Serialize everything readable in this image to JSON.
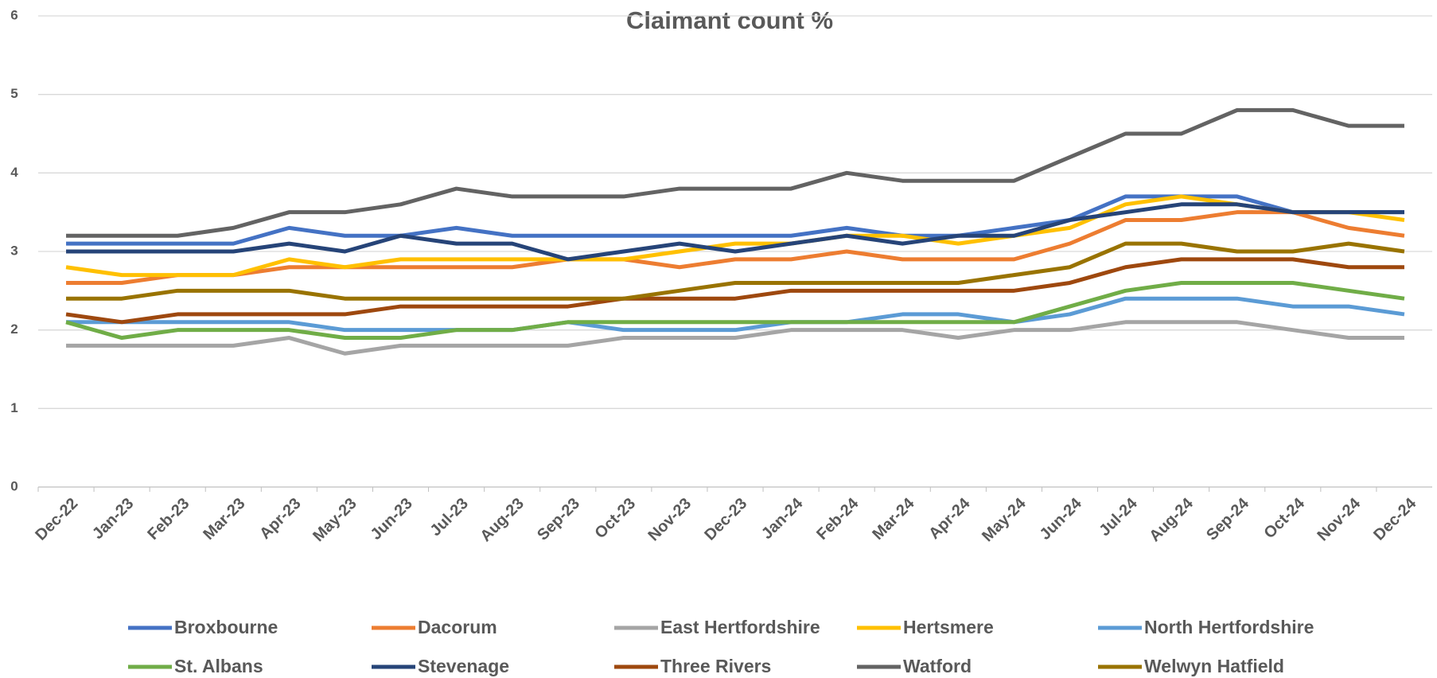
{
  "chart_data": {
    "type": "line",
    "title": "Claimant count %",
    "categories": [
      "Dec-22",
      "Jan-23",
      "Feb-23",
      "Mar-23",
      "Apr-23",
      "May-23",
      "Jun-23",
      "Jul-23",
      "Aug-23",
      "Sep-23",
      "Oct-23",
      "Nov-23",
      "Dec-23",
      "Jan-24",
      "Feb-24",
      "Mar-24",
      "Apr-24",
      "May-24",
      "Jun-24",
      "Jul-24",
      "Aug-24",
      "Sep-24",
      "Oct-24",
      "Nov-24",
      "Dec-24"
    ],
    "series": [
      {
        "name": "Broxbourne",
        "color": "#4472c4",
        "values": [
          3.1,
          3.1,
          3.1,
          3.1,
          3.3,
          3.2,
          3.2,
          3.3,
          3.2,
          3.2,
          3.2,
          3.2,
          3.2,
          3.2,
          3.3,
          3.2,
          3.2,
          3.3,
          3.4,
          3.7,
          3.7,
          3.7,
          3.5,
          3.5,
          3.5
        ]
      },
      {
        "name": "Dacorum",
        "color": "#ed7d31",
        "values": [
          2.6,
          2.6,
          2.7,
          2.7,
          2.8,
          2.8,
          2.8,
          2.8,
          2.8,
          2.9,
          2.9,
          2.8,
          2.9,
          2.9,
          3.0,
          2.9,
          2.9,
          2.9,
          3.1,
          3.4,
          3.4,
          3.5,
          3.5,
          3.3,
          3.2
        ]
      },
      {
        "name": "East Hertfordshire",
        "color": "#a5a5a5",
        "values": [
          1.8,
          1.8,
          1.8,
          1.8,
          1.9,
          1.7,
          1.8,
          1.8,
          1.8,
          1.8,
          1.9,
          1.9,
          1.9,
          2.0,
          2.0,
          2.0,
          1.9,
          2.0,
          2.0,
          2.1,
          2.1,
          2.1,
          2.0,
          1.9,
          1.9
        ]
      },
      {
        "name": "Hertsmere",
        "color": "#ffc000",
        "values": [
          2.8,
          2.7,
          2.7,
          2.7,
          2.9,
          2.8,
          2.9,
          2.9,
          2.9,
          2.9,
          2.9,
          3.0,
          3.1,
          3.1,
          3.2,
          3.2,
          3.1,
          3.2,
          3.3,
          3.6,
          3.7,
          3.6,
          3.5,
          3.5,
          3.4
        ]
      },
      {
        "name": "North Hertfordshire",
        "color": "#5b9bd5",
        "values": [
          2.1,
          2.1,
          2.1,
          2.1,
          2.1,
          2.0,
          2.0,
          2.0,
          2.0,
          2.1,
          2.0,
          2.0,
          2.0,
          2.1,
          2.1,
          2.2,
          2.2,
          2.1,
          2.2,
          2.4,
          2.4,
          2.4,
          2.3,
          2.3,
          2.2
        ]
      },
      {
        "name": "St. Albans",
        "color": "#70ad47",
        "values": [
          2.1,
          1.9,
          2.0,
          2.0,
          2.0,
          1.9,
          1.9,
          2.0,
          2.0,
          2.1,
          2.1,
          2.1,
          2.1,
          2.1,
          2.1,
          2.1,
          2.1,
          2.1,
          2.3,
          2.5,
          2.6,
          2.6,
          2.6,
          2.5,
          2.4
        ]
      },
      {
        "name": "Stevenage",
        "color": "#264478",
        "values": [
          3.0,
          3.0,
          3.0,
          3.0,
          3.1,
          3.0,
          3.2,
          3.1,
          3.1,
          2.9,
          3.0,
          3.1,
          3.0,
          3.1,
          3.2,
          3.1,
          3.2,
          3.2,
          3.4,
          3.5,
          3.6,
          3.6,
          3.5,
          3.5,
          3.5
        ]
      },
      {
        "name": "Three Rivers",
        "color": "#9e480e",
        "values": [
          2.2,
          2.1,
          2.2,
          2.2,
          2.2,
          2.2,
          2.3,
          2.3,
          2.3,
          2.3,
          2.4,
          2.4,
          2.4,
          2.5,
          2.5,
          2.5,
          2.5,
          2.5,
          2.6,
          2.8,
          2.9,
          2.9,
          2.9,
          2.8,
          2.8
        ]
      },
      {
        "name": "Watford",
        "color": "#636363",
        "values": [
          3.2,
          3.2,
          3.2,
          3.3,
          3.5,
          3.5,
          3.6,
          3.8,
          3.7,
          3.7,
          3.7,
          3.8,
          3.8,
          3.8,
          4.0,
          3.9,
          3.9,
          3.9,
          4.2,
          4.5,
          4.5,
          4.8,
          4.8,
          4.6,
          4.6
        ]
      },
      {
        "name": "Welwyn Hatfield",
        "color": "#997300",
        "values": [
          2.4,
          2.4,
          2.5,
          2.5,
          2.5,
          2.4,
          2.4,
          2.4,
          2.4,
          2.4,
          2.4,
          2.5,
          2.6,
          2.6,
          2.6,
          2.6,
          2.6,
          2.7,
          2.8,
          3.1,
          3.1,
          3.0,
          3.0,
          3.1,
          3.0
        ]
      }
    ],
    "ylim": [
      0,
      6
    ],
    "yticks": [
      0,
      1,
      2,
      3,
      4,
      5,
      6
    ],
    "grid": true
  }
}
